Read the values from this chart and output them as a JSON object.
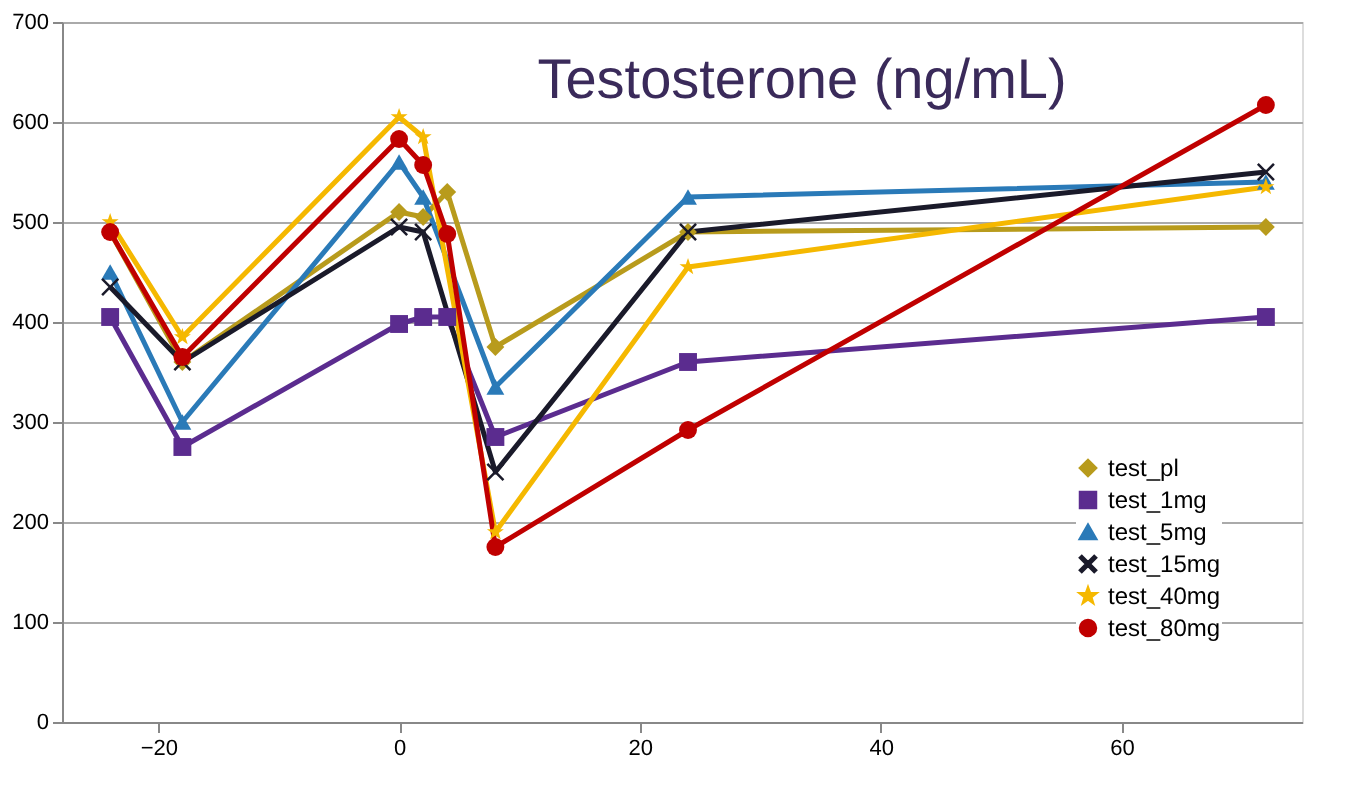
{
  "chart_data": {
    "type": "line",
    "title": "Testosterone (ng/mL)",
    "xlim": [
      -28,
      75
    ],
    "xticks": [
      -20,
      0,
      20,
      40,
      60
    ],
    "ylim": [
      0,
      700
    ],
    "yticks": [
      0,
      100,
      200,
      300,
      400,
      500,
      600,
      700
    ],
    "grid": "y",
    "legend": "bottom right",
    "line_style": "solid",
    "series": [
      {
        "name": "test_pl",
        "color": "#b89b1c",
        "marker": "diamond",
        "x": [
          -24,
          -18,
          0,
          2,
          4,
          8,
          24,
          72
        ],
        "values": [
          490,
          360,
          510,
          505,
          530,
          375,
          490,
          495
        ]
      },
      {
        "name": "test_1mg",
        "color": "#5b2c8f",
        "marker": "square",
        "x": [
          -24,
          -18,
          0,
          2,
          4,
          8,
          24,
          72
        ],
        "values": [
          405,
          275,
          398,
          405,
          405,
          285,
          360,
          405
        ]
      },
      {
        "name": "test_5mg",
        "color": "#2a7ab8",
        "marker": "triangle",
        "x": [
          -24,
          -18,
          0,
          2,
          8,
          24,
          72
        ],
        "values": [
          450,
          300,
          560,
          525,
          335,
          525,
          540
        ]
      },
      {
        "name": "test_15mg",
        "color": "#1a1a2a",
        "marker": "cross",
        "x": [
          -24,
          -18,
          0,
          2,
          8,
          24,
          72
        ],
        "values": [
          435,
          360,
          495,
          490,
          250,
          490,
          550
        ]
      },
      {
        "name": "test_40mg",
        "color": "#f5b800",
        "marker": "star",
        "x": [
          -24,
          -18,
          0,
          2,
          8,
          24,
          72
        ],
        "values": [
          500,
          385,
          605,
          585,
          190,
          455,
          535
        ]
      },
      {
        "name": "test_80mg",
        "color": "#c00000",
        "marker": "circle",
        "x": [
          -24,
          -18,
          0,
          2,
          4,
          8,
          24,
          72
        ],
        "values": [
          490,
          365,
          583,
          557,
          488,
          175,
          292,
          617
        ]
      }
    ]
  }
}
